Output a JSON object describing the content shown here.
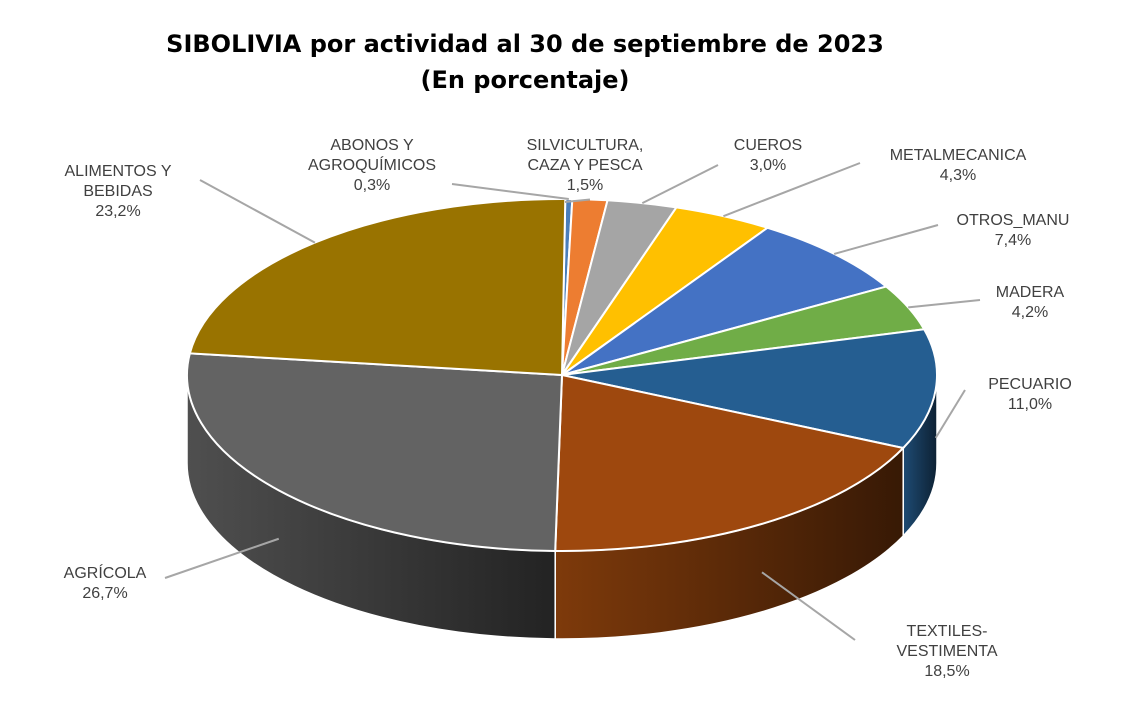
{
  "chart_data": {
    "type": "pie",
    "title": "SIBOLIVIA por actividad al 30 de septiembre de 2023",
    "subtitle": "(En porcentaje)",
    "slices": [
      {
        "name": "ABONOS Y AGROQUÍMICOS",
        "label_lines": [
          "ABONOS Y",
          "AGROQUÍMICOS"
        ],
        "value": 0.3,
        "value_label": "0,3%",
        "color": "#4a7ebb"
      },
      {
        "name": "SILVICULTURA, CAZA Y PESCA",
        "label_lines": [
          "SILVICULTURA,",
          "CAZA  Y PESCA"
        ],
        "value": 1.5,
        "value_label": "1,5%",
        "color": "#ed7d31"
      },
      {
        "name": "CUEROS",
        "label_lines": [
          "CUEROS"
        ],
        "value": 3.0,
        "value_label": "3,0%",
        "color": "#a5a5a5"
      },
      {
        "name": "METALMECANICA",
        "label_lines": [
          "METALMECANICA"
        ],
        "value": 4.3,
        "value_label": "4,3%",
        "color": "#ffc000"
      },
      {
        "name": "OTROS_MANU",
        "label_lines": [
          "OTROS_MANU"
        ],
        "value": 7.4,
        "value_label": "7,4%",
        "color": "#4472c4"
      },
      {
        "name": "MADERA",
        "label_lines": [
          "MADERA"
        ],
        "value": 4.2,
        "value_label": "4,2%",
        "color": "#70ad47"
      },
      {
        "name": "PECUARIO",
        "label_lines": [
          "PECUARIO"
        ],
        "value": 11.0,
        "value_label": "11,0%",
        "color": "#255e91"
      },
      {
        "name": "TEXTILES-VESTIMENTA",
        "label_lines": [
          "TEXTILES-",
          "VESTIMENTA"
        ],
        "value": 18.5,
        "value_label": "18,5%",
        "color": "#9e480e"
      },
      {
        "name": "AGRÍCOLA",
        "label_lines": [
          "AGRÍCOLA"
        ],
        "value": 26.7,
        "value_label": "26,7%",
        "color": "#636363"
      },
      {
        "name": "ALIMENTOS Y BEBIDAS",
        "label_lines": [
          "ALIMENTOS Y",
          "BEBIDAS"
        ],
        "value": 23.2,
        "value_label": "23,2%",
        "color": "#997300"
      }
    ]
  }
}
